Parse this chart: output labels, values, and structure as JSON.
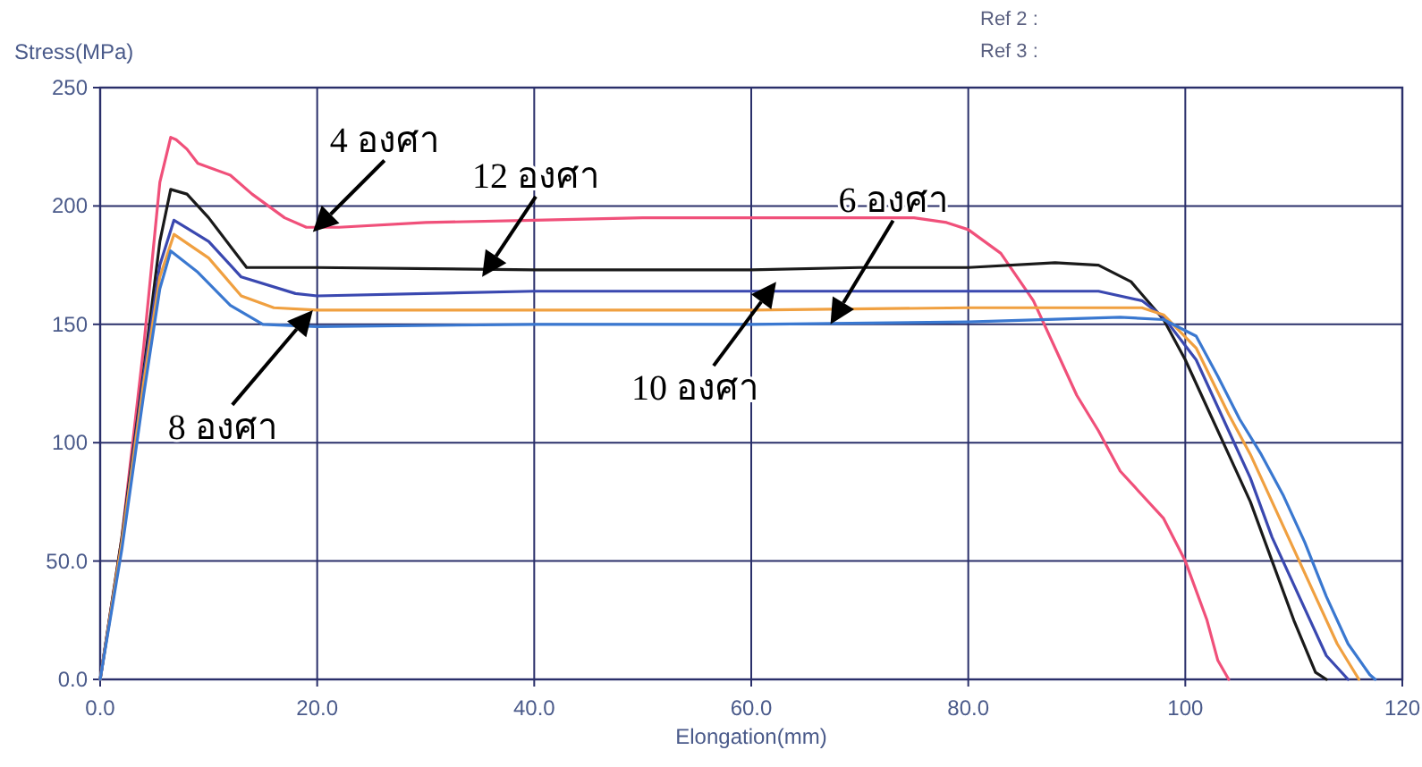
{
  "chart_data": {
    "type": "line",
    "xlabel": "Elongation(mm)",
    "ylabel": "Stress(MPa)",
    "xlim": [
      0,
      120
    ],
    "ylim": [
      0,
      250
    ],
    "xticks": [
      {
        "value": 0,
        "label": "0.0"
      },
      {
        "value": 20,
        "label": "20.0"
      },
      {
        "value": 40,
        "label": "40.0"
      },
      {
        "value": 60,
        "label": "60.0"
      },
      {
        "value": 80,
        "label": "80.0"
      },
      100,
      120
    ],
    "yticks": [
      {
        "value": 0,
        "label": "0.0"
      },
      {
        "value": 50,
        "label": "50.0"
      },
      100,
      150,
      200,
      250
    ],
    "grid": true,
    "series": [
      {
        "color": "#f0507a",
        "x": [
          0,
          2,
          4,
          5.5,
          6.5,
          7,
          8,
          9,
          12,
          14,
          17,
          19,
          22,
          30,
          40,
          50,
          60,
          70,
          75,
          78,
          80,
          83,
          86,
          88,
          90,
          92,
          94,
          96,
          98,
          100,
          102,
          103,
          104
        ],
        "values": [
          0,
          60,
          140,
          210,
          229,
          228,
          224,
          218,
          213,
          205,
          195,
          191,
          191,
          193,
          194,
          195,
          195,
          195,
          195,
          193,
          190,
          180,
          160,
          140,
          120,
          105,
          88,
          78,
          68,
          50,
          25,
          8,
          0
        ]
      },
      {
        "color": "#1a1a1a",
        "x": [
          0,
          2,
          4,
          5.5,
          6.5,
          8,
          10,
          12,
          13.5,
          20,
          40,
          60,
          70,
          80,
          88,
          92,
          95,
          98,
          100,
          102,
          104,
          106,
          108,
          110,
          112,
          113
        ],
        "values": [
          0,
          60,
          130,
          185,
          207,
          205,
          195,
          183,
          174,
          174,
          173,
          173,
          174,
          174,
          176,
          175,
          168,
          152,
          135,
          115,
          95,
          75,
          50,
          25,
          3,
          0
        ]
      },
      {
        "color": "#3a48b0",
        "x": [
          0,
          2,
          4,
          5.5,
          6.8,
          10,
          13,
          18,
          20,
          40,
          60,
          80,
          92,
          96,
          98,
          101,
          104,
          106,
          108,
          111,
          113,
          115
        ],
        "values": [
          0,
          58,
          128,
          175,
          194,
          185,
          170,
          163,
          162,
          164,
          164,
          164,
          164,
          160,
          153,
          135,
          105,
          85,
          60,
          30,
          10,
          0
        ]
      },
      {
        "color": "#f0a040",
        "x": [
          0,
          2,
          4,
          5.5,
          6.8,
          10,
          13,
          16,
          20,
          40,
          60,
          80,
          92,
          96,
          98,
          101,
          104,
          106,
          108,
          110,
          112,
          114,
          116
        ],
        "values": [
          0,
          58,
          125,
          170,
          188,
          178,
          162,
          157,
          156,
          156,
          156,
          157,
          157,
          157,
          154,
          140,
          112,
          95,
          75,
          55,
          35,
          15,
          0
        ]
      },
      {
        "color": "#3a78d0",
        "x": [
          0,
          2,
          4,
          5.5,
          6.5,
          9,
          12,
          15,
          20,
          40,
          60,
          80,
          94,
          98,
          101,
          103,
          105,
          107,
          109,
          111,
          113,
          115,
          117,
          117.5
        ],
        "values": [
          0,
          55,
          120,
          165,
          181,
          172,
          158,
          150,
          149,
          150,
          150,
          151,
          153,
          152,
          145,
          128,
          110,
          95,
          78,
          58,
          35,
          15,
          2,
          0
        ]
      }
    ],
    "annotations": [
      {
        "text": "4 องศา",
        "x": 19.6,
        "y": 189
      },
      {
        "text": "12 องศา",
        "x": 35.2,
        "y": 170
      },
      {
        "text": "6 องศา",
        "x": 67.3,
        "y": 150
      },
      {
        "text": "10 องศา",
        "x": 62.3,
        "y": 168
      },
      {
        "text": "8 องศา",
        "x": 19.6,
        "y": 156
      },
      "Ref 2 :",
      "Ref 3 :"
    ]
  }
}
